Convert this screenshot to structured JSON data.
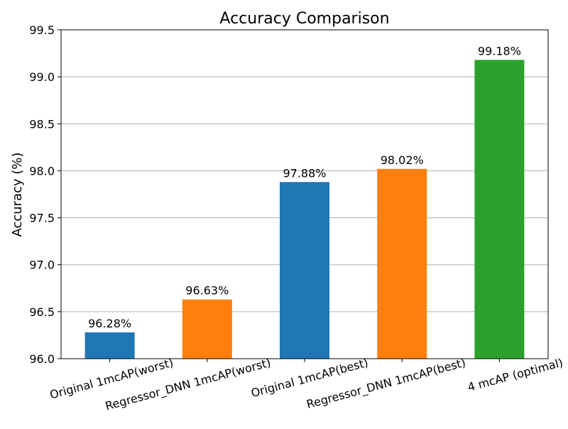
{
  "chart_data": {
    "type": "bar",
    "title": "Accuracy Comparison",
    "xlabel": "",
    "ylabel": "Accuracy (%)",
    "ylim": [
      96.0,
      99.5
    ],
    "yticks": [
      "96.0",
      "96.5",
      "97.0",
      "97.5",
      "98.0",
      "98.5",
      "99.0",
      "99.5"
    ],
    "grid": "horizontal",
    "categories": [
      "Original 1mcAP(worst)",
      "Regressor_DNN 1mcAP(worst)",
      "Original 1mcAP(best)",
      "Regressor_DNN 1mcAP(best)",
      "4 mcAP (optimal)"
    ],
    "values": [
      96.28,
      96.63,
      97.88,
      98.02,
      99.18
    ],
    "value_labels": [
      "96.28%",
      "96.63%",
      "97.88%",
      "98.02%",
      "99.18%"
    ],
    "colors": [
      "#1f77b4",
      "#ff7f0e",
      "#1f77b4",
      "#ff7f0e",
      "#2ca02c"
    ]
  }
}
